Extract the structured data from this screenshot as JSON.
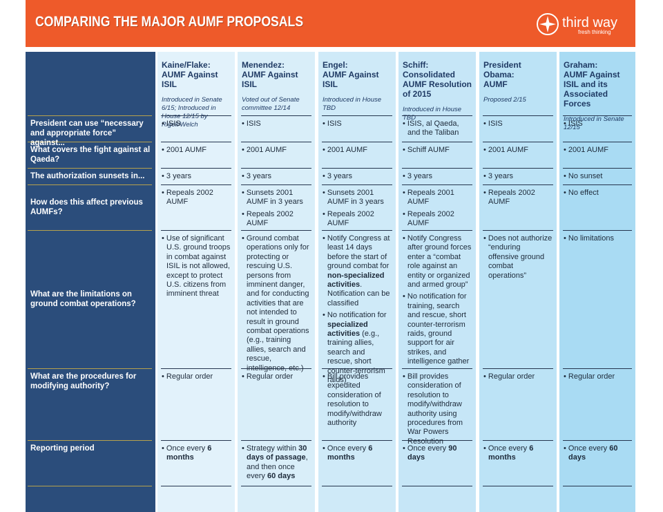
{
  "header": {
    "title": "COMPARING THE MAJOR AUMF PROPOSALS",
    "logo": "third way",
    "tagline": "fresh thinking"
  },
  "table": {
    "columns": [
      {
        "name": "Kaine/Flake:",
        "title": "AUMF Against ISIL",
        "note": "Introduced in Senate 6/15; Introduced in House 12/15 by Rigell/Welch"
      },
      {
        "name": "Menendez:",
        "title": "AUMF Against ISIL",
        "note": "Voted out of Senate committee 12/14"
      },
      {
        "name": "Engel:",
        "title": "AUMF Against ISIL",
        "note": "Introduced in House TBD"
      },
      {
        "name": "Schiff:",
        "title": "Consolidated AUMF Resolution of 2015",
        "note": "Introduced in House TBD"
      },
      {
        "name": "President Obama:",
        "title": "AUMF",
        "note": "Proposed 2/15"
      },
      {
        "name": "Graham:",
        "title": "AUMF Against ISIL and its Associated Forces",
        "note": "Introduced in Senate 12/15"
      }
    ],
    "rows": [
      {
        "label": "President can use “necessary and appropriate force” against...",
        "cells": [
          [
            [
              "ISIS"
            ]
          ],
          [
            [
              "ISIS"
            ]
          ],
          [
            [
              "ISIS"
            ]
          ],
          [
            [
              "ISIS, al Qaeda, and the Taliban"
            ]
          ],
          [
            [
              "ISIS"
            ]
          ],
          [
            [
              "ISIS"
            ]
          ]
        ]
      },
      {
        "label": "What covers the fight against al Qaeda?",
        "cells": [
          [
            [
              "2001 AUMF"
            ]
          ],
          [
            [
              "2001 AUMF"
            ]
          ],
          [
            [
              "2001 AUMF"
            ]
          ],
          [
            [
              "Schiff AUMF"
            ]
          ],
          [
            [
              "2001 AUMF"
            ]
          ],
          [
            [
              "2001 AUMF"
            ]
          ]
        ]
      },
      {
        "label": "The authorization sunsets in...",
        "cells": [
          [
            [
              "3 years"
            ]
          ],
          [
            [
              "3 years"
            ]
          ],
          [
            [
              "3 years"
            ]
          ],
          [
            [
              "3 years"
            ]
          ],
          [
            [
              "3 years"
            ]
          ],
          [
            [
              "No sunset"
            ]
          ]
        ]
      },
      {
        "label": "How does this affect previous AUMFs?",
        "cells": [
          [
            [
              "Repeals 2002 AUMF"
            ]
          ],
          [
            [
              "Sunsets 2001 AUMF in 3 years"
            ],
            [
              "Repeals 2002 AUMF"
            ]
          ],
          [
            [
              "Sunsets 2001 AUMF in 3 years"
            ],
            [
              "Repeals 2002 AUMF"
            ]
          ],
          [
            [
              "Repeals 2001 AUMF"
            ],
            [
              "Repeals 2002 AUMF"
            ]
          ],
          [
            [
              "Repeals 2002 AUMF"
            ]
          ],
          [
            [
              "No effect"
            ]
          ]
        ]
      },
      {
        "label": "What are the limitations on ground combat operations?",
        "cells": [
          [
            [
              "Use of significant U.S. ground troops in combat against ISIL is not allowed, except to protect U.S. citizens from imminent threat"
            ]
          ],
          [
            [
              "Ground combat operations only for protecting or rescuing U.S. persons from imminent danger, and for conducting activities that are not intended to result in ground combat operations (e.g., training allies, search and rescue, intelligence, etc.)"
            ]
          ],
          [
            [
              "Notify Congress at least 14 days before the start of ground combat for ",
              {
                "text": "non-specialized activities",
                "bold": true
              },
              ". Notification can be classified"
            ],
            [
              "No notification for ",
              {
                "text": "specialized activities",
                "bold": true
              },
              " (e.g., training allies, search and rescue, short counter-terrorism raids)"
            ]
          ],
          [
            [
              "Notify Congress after ground forces enter a “combat role against an entity or organized and armed group”"
            ],
            [
              "No notification for training, search and rescue, short counter-terrorism raids, ground support for air strikes, and intelligence gather"
            ]
          ],
          [
            [
              "Does not authorize “enduring offensive ground combat operations”"
            ]
          ],
          [
            [
              "No limitations"
            ]
          ]
        ]
      },
      {
        "label": "What are the procedures for modifying authority?",
        "cells": [
          [
            [
              "Regular order"
            ]
          ],
          [
            [
              "Regular order"
            ]
          ],
          [
            [
              "Bill provides expedited consideration of resolution to modify/withdraw authority"
            ]
          ],
          [
            [
              "Bill provides consideration of resolution to modify/withdraw authority using procedures from War Powers Resolution"
            ]
          ],
          [
            [
              "Regular order"
            ]
          ],
          [
            [
              "Regular order"
            ]
          ]
        ]
      },
      {
        "label": "Reporting period",
        "cells": [
          [
            [
              "Once every ",
              {
                "text": "6 months",
                "bold": true
              }
            ]
          ],
          [
            [
              "Strategy within ",
              {
                "text": "30 days of passage",
                "bold": true
              },
              ", and then once every ",
              {
                "text": "60 days",
                "bold": true
              }
            ]
          ],
          [
            [
              "Once every ",
              {
                "text": "6 months",
                "bold": true
              }
            ]
          ],
          [
            [
              "Once every ",
              {
                "text": "90 days",
                "bold": true
              }
            ]
          ],
          [
            [
              "Once every ",
              {
                "text": "6 months",
                "bold": true
              }
            ]
          ],
          [
            [
              "Once every ",
              {
                "text": "60 days",
                "bold": true
              }
            ]
          ]
        ]
      }
    ]
  }
}
